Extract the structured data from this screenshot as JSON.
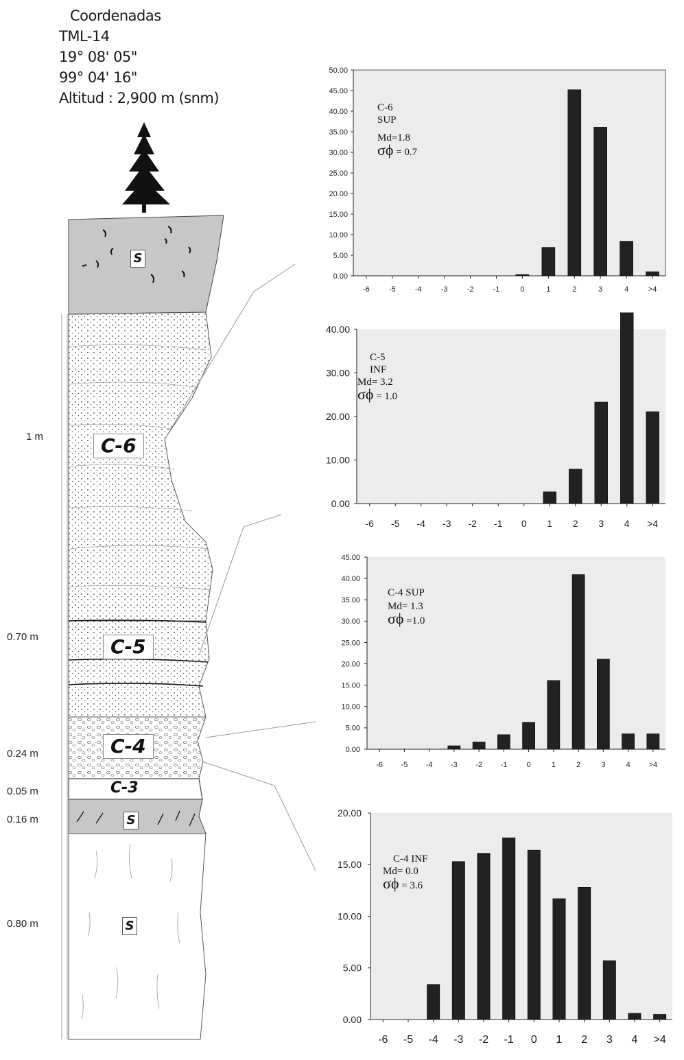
{
  "header": {
    "line1": "Coordenadas",
    "line2": "TML-14",
    "line3": "19° 08' 05\"",
    "line4": "99° 04' 16\"",
    "line5": "Altitud : 2,900 m (snm)"
  },
  "column": {
    "depths": [
      "1 m",
      "0.70 m",
      "0.24 m",
      "0.05 m",
      "0.16 m",
      "0.80 m"
    ],
    "layers": [
      "C-6",
      "C-5",
      "C-4",
      "C-3"
    ],
    "soil_label": "S"
  },
  "chart_data": [
    {
      "type": "bar",
      "title": "C-6",
      "subtitle": "SUP",
      "md": "Md=1.8",
      "sigma_symbol": "σϕ",
      "sigma_value": "= 0.7",
      "categories": [
        "-6",
        "-5",
        "-4",
        "-3",
        "-2",
        "-1",
        "0",
        "1",
        "2",
        "3",
        "4",
        ">4"
      ],
      "values": [
        0,
        0,
        0,
        0,
        0,
        0,
        0.3,
        6.9,
        45.2,
        36.1,
        8.4,
        1.0
      ],
      "ylim": [
        0,
        50
      ],
      "yticks": [
        "0.00",
        "5.00",
        "10.00",
        "15.00",
        "20.00",
        "25.00",
        "30.00",
        "35.00",
        "40.00",
        "45.00",
        "50.00"
      ],
      "ytick_values": [
        0,
        5,
        10,
        15,
        20,
        25,
        30,
        35,
        40,
        45,
        50
      ]
    },
    {
      "type": "bar",
      "title": "C-5",
      "subtitle": "INF",
      "md": "Md= 3.2",
      "sigma_symbol": "σϕ",
      "sigma_value": "= 1.0",
      "categories": [
        "-6",
        "-5",
        "-4",
        "-3",
        "-2",
        "-1",
        "0",
        "1",
        "2",
        "3",
        "4",
        ">4"
      ],
      "values": [
        0,
        0,
        0,
        0,
        0,
        0,
        0,
        2.7,
        7.9,
        23.3,
        43.8,
        21.1
      ],
      "ylim": [
        0,
        40
      ],
      "yticks": [
        "0.00",
        "10.00",
        "20.00",
        "30.00",
        "40.00"
      ],
      "ytick_values": [
        0,
        10,
        20,
        30,
        40
      ]
    },
    {
      "type": "bar",
      "title": "C-4 SUP",
      "subtitle": "",
      "md": "Md= 1.3",
      "sigma_symbol": "σϕ",
      "sigma_value": "=1.0",
      "categories": [
        "-6",
        "-5",
        "-4",
        "-3",
        "-2",
        "-1",
        "0",
        "1",
        "2",
        "3",
        "4",
        ">4"
      ],
      "values": [
        0,
        0,
        0,
        0.8,
        1.7,
        3.4,
        6.3,
        16.1,
        40.9,
        21.1,
        3.6,
        3.6
      ],
      "ylim": [
        0,
        45
      ],
      "yticks": [
        "0.00",
        "5.00",
        "10.00",
        "15.00",
        "20.00",
        "25.00",
        "30.00",
        "35.00",
        "40.00",
        "45.00"
      ],
      "ytick_values": [
        0,
        5,
        10,
        15,
        20,
        25,
        30,
        35,
        40,
        45
      ]
    },
    {
      "type": "bar",
      "title": "C-4 INF",
      "subtitle": "",
      "md": "Md= 0.0",
      "sigma_symbol": "σϕ",
      "sigma_value": "= 3.6",
      "categories": [
        "-6",
        "-5",
        "-4",
        "-3",
        "-2",
        "-1",
        "0",
        "1",
        "2",
        "3",
        "4",
        ">4"
      ],
      "values": [
        0,
        0,
        3.4,
        15.3,
        16.1,
        17.6,
        16.4,
        11.7,
        12.8,
        5.7,
        0.6,
        0.5
      ],
      "ylim": [
        0,
        20
      ],
      "yticks": [
        "0.00",
        "5.00",
        "10.00",
        "15.00",
        "20.00"
      ],
      "ytick_values": [
        0,
        5,
        10,
        15,
        20
      ]
    }
  ]
}
